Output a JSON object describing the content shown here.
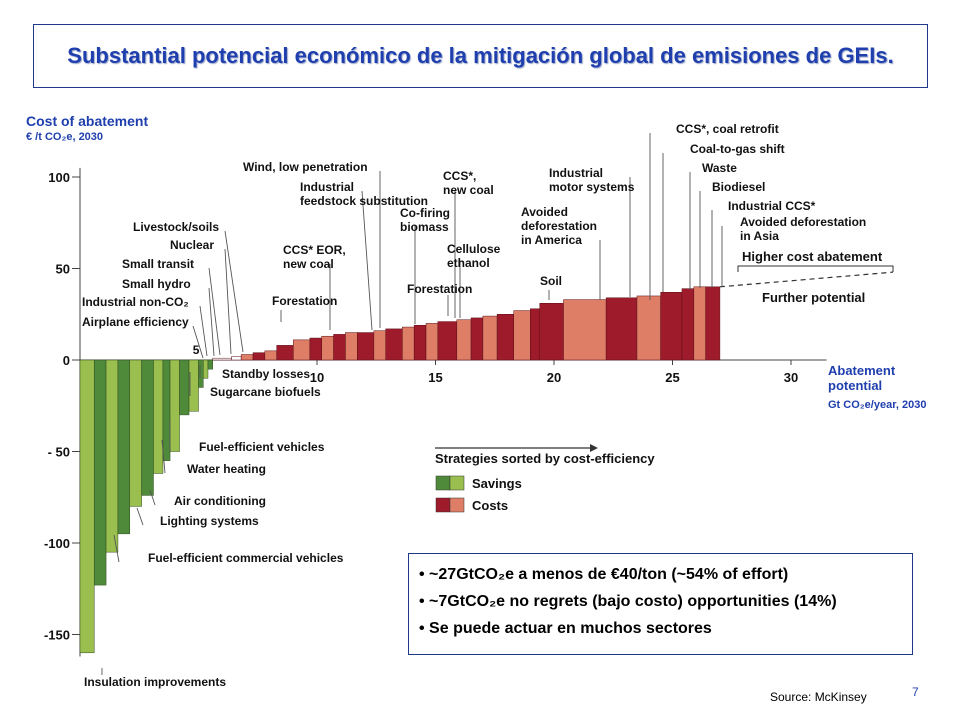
{
  "title": "Substantial potencial económico de la mitigación global de emisiones de GEIs.",
  "y_axis_title": "Cost of abatement",
  "y_axis_units": "€ /t CO₂e, 2030",
  "x_axis_title": "Abatement potential",
  "x_axis_units": "Gt CO₂e/year,  2030",
  "bullets": [
    "~27GtCO₂e a menos de €40/ton (~54% of effort)",
    "~7GtCO₂e no regrets (bajo costo) opportunities (14%)",
    "Se puede actuar en muchos sectores"
  ],
  "source": "Source:   McKinsey",
  "page_number": "7",
  "colors": {
    "savings_dark": "#4f8a3a",
    "savings_light": "#9bbf4f",
    "costs_dark": "#9e1b2b",
    "costs_light": "#de7e66",
    "title": "#1f3fae"
  },
  "chart_data": {
    "type": "bar",
    "xlim": [
      0,
      32
    ],
    "ylim": [
      -160,
      105
    ],
    "x_ticks": [
      "10",
      "15",
      "20",
      "25",
      "30"
    ],
    "x_tick_values": [
      10,
      15,
      20,
      25,
      30
    ],
    "y_ticks": [
      "100",
      "50",
      "0",
      "- 50",
      "-100",
      "-150"
    ],
    "y_tick_values": [
      100,
      50,
      0,
      -50,
      -100,
      -150
    ],
    "x_inner_label": "5",
    "legend": {
      "heading": "Strategies sorted by cost-efficiency",
      "items": [
        {
          "name": "Savings",
          "colors": [
            "#4f8a3a",
            "#9bbf4f"
          ]
        },
        {
          "name": "Costs",
          "colors": [
            "#9e1b2b",
            "#de7e66"
          ]
        }
      ]
    },
    "further_potential": {
      "higher_cost_label": "Higher cost abatement",
      "label": "Further potential"
    },
    "savings_bars": [
      {
        "x0": 0.0,
        "x1": 0.6,
        "y": -160,
        "color": "light"
      },
      {
        "x0": 0.6,
        "x1": 1.1,
        "y": -123,
        "color": "dark"
      },
      {
        "x0": 1.1,
        "x1": 1.6,
        "y": -105,
        "color": "light"
      },
      {
        "x0": 1.6,
        "x1": 2.1,
        "y": -95,
        "color": "dark"
      },
      {
        "x0": 2.1,
        "x1": 2.6,
        "y": -80,
        "color": "light"
      },
      {
        "x0": 2.6,
        "x1": 3.1,
        "y": -74,
        "color": "dark"
      },
      {
        "x0": 3.1,
        "x1": 3.5,
        "y": -62,
        "color": "light"
      },
      {
        "x0": 3.5,
        "x1": 3.8,
        "y": -55,
        "color": "dark"
      },
      {
        "x0": 3.8,
        "x1": 4.2,
        "y": -50,
        "color": "light"
      },
      {
        "x0": 4.2,
        "x1": 4.6,
        "y": -30,
        "color": "dark"
      },
      {
        "x0": 4.6,
        "x1": 5.0,
        "y": -28,
        "color": "light"
      },
      {
        "x0": 5.0,
        "x1": 5.2,
        "y": -15,
        "color": "dark"
      },
      {
        "x0": 5.2,
        "x1": 5.4,
        "y": -10,
        "color": "light"
      },
      {
        "x0": 5.4,
        "x1": 5.6,
        "y": -5,
        "color": "dark"
      }
    ],
    "cost_bars": [
      {
        "x0": 5.6,
        "x1": 6.4,
        "y": 1,
        "color": "outline"
      },
      {
        "x0": 6.4,
        "x1": 6.8,
        "y": 2,
        "color": "outline"
      },
      {
        "x0": 6.8,
        "x1": 7.3,
        "y": 3,
        "color": "light"
      },
      {
        "x0": 7.3,
        "x1": 7.8,
        "y": 4,
        "color": "dark"
      },
      {
        "x0": 7.8,
        "x1": 8.3,
        "y": 5,
        "color": "light"
      },
      {
        "x0": 8.3,
        "x1": 9.0,
        "y": 8,
        "color": "dark"
      },
      {
        "x0": 9.0,
        "x1": 9.7,
        "y": 11,
        "color": "light"
      },
      {
        "x0": 9.7,
        "x1": 10.2,
        "y": 12,
        "color": "dark"
      },
      {
        "x0": 10.2,
        "x1": 10.7,
        "y": 13,
        "color": "light"
      },
      {
        "x0": 10.7,
        "x1": 11.2,
        "y": 14,
        "color": "dark"
      },
      {
        "x0": 11.2,
        "x1": 11.7,
        "y": 15,
        "color": "light"
      },
      {
        "x0": 11.7,
        "x1": 12.4,
        "y": 15,
        "color": "dark"
      },
      {
        "x0": 12.4,
        "x1": 12.9,
        "y": 16,
        "color": "light"
      },
      {
        "x0": 12.9,
        "x1": 13.6,
        "y": 17,
        "color": "dark"
      },
      {
        "x0": 13.6,
        "x1": 14.1,
        "y": 18,
        "color": "light"
      },
      {
        "x0": 14.1,
        "x1": 14.6,
        "y": 19,
        "color": "dark"
      },
      {
        "x0": 14.6,
        "x1": 15.1,
        "y": 20,
        "color": "light"
      },
      {
        "x0": 15.1,
        "x1": 15.9,
        "y": 21,
        "color": "dark"
      },
      {
        "x0": 15.9,
        "x1": 16.5,
        "y": 22,
        "color": "light"
      },
      {
        "x0": 16.5,
        "x1": 17.0,
        "y": 23,
        "color": "dark"
      },
      {
        "x0": 17.0,
        "x1": 17.6,
        "y": 24,
        "color": "light"
      },
      {
        "x0": 17.6,
        "x1": 18.3,
        "y": 25,
        "color": "dark"
      },
      {
        "x0": 18.3,
        "x1": 19.0,
        "y": 27,
        "color": "light"
      },
      {
        "x0": 19.0,
        "x1": 19.4,
        "y": 28,
        "color": "dark"
      },
      {
        "x0": 19.4,
        "x1": 20.4,
        "y": 31,
        "color": "dark"
      },
      {
        "x0": 20.4,
        "x1": 22.2,
        "y": 33,
        "color": "light"
      },
      {
        "x0": 22.2,
        "x1": 23.5,
        "y": 34,
        "color": "dark"
      },
      {
        "x0": 23.5,
        "x1": 24.5,
        "y": 35,
        "color": "light"
      },
      {
        "x0": 24.5,
        "x1": 25.4,
        "y": 37,
        "color": "dark"
      },
      {
        "x0": 25.4,
        "x1": 25.9,
        "y": 39,
        "color": "dark"
      },
      {
        "x0": 25.9,
        "x1": 26.4,
        "y": 40,
        "color": "light"
      },
      {
        "x0": 26.4,
        "x1": 27.0,
        "y": 40,
        "color": "dark"
      }
    ],
    "annotations": [
      {
        "text": "Wind, low penetration"
      },
      {
        "text": "Industrial feedstock substitution"
      },
      {
        "text": "Livestock/soils"
      },
      {
        "text": "Nuclear"
      },
      {
        "text": "Small transit"
      },
      {
        "text": "Small hydro"
      },
      {
        "text": "Industrial non-CO₂"
      },
      {
        "text": "Airplane efficiency"
      },
      {
        "text": "CCS* EOR, new coal"
      },
      {
        "text": "Forestation"
      },
      {
        "text": "CCS*, new coal"
      },
      {
        "text": "Co-firing biomass"
      },
      {
        "text": "Cellulose ethanol"
      },
      {
        "text": "Forestation"
      },
      {
        "text": "Industrial motor systems"
      },
      {
        "text": "Avoided deforestation in America"
      },
      {
        "text": "Soil"
      },
      {
        "text": "CCS*, coal retrofit"
      },
      {
        "text": "Coal-to-gas shift"
      },
      {
        "text": "Waste"
      },
      {
        "text": "Biodiesel"
      },
      {
        "text": "Industrial CCS*"
      },
      {
        "text": "Avoided deforestation in Asia"
      },
      {
        "text": "Standby losses"
      },
      {
        "text": "Sugarcane biofuels"
      },
      {
        "text": "Fuel-efficient vehicles"
      },
      {
        "text": "Water heating"
      },
      {
        "text": "Air conditioning"
      },
      {
        "text": "Lighting systems"
      },
      {
        "text": "Fuel-efficient commercial vehicles"
      },
      {
        "text": "Insulation improvements"
      }
    ]
  }
}
